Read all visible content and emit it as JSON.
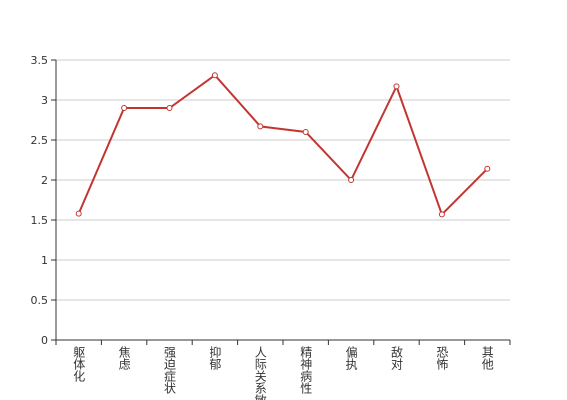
{
  "chart_data": {
    "type": "line",
    "categories": [
      "躯体化",
      "焦虑",
      "强迫症状",
      "抑郁",
      "人际关系敏感",
      "精神病性",
      "偏执",
      "敌对",
      "恐怖",
      "其他"
    ],
    "series": [
      {
        "color": "#c23531",
        "values": [
          1.58,
          2.9,
          2.9,
          3.31,
          2.67,
          2.6,
          2.0,
          3.17,
          1.57,
          2.14
        ]
      }
    ],
    "ylim": [
      0,
      3.5
    ],
    "yticks": [
      0,
      0.5,
      1,
      1.5,
      2,
      2.5,
      3,
      3.5
    ],
    "grid": true
  }
}
